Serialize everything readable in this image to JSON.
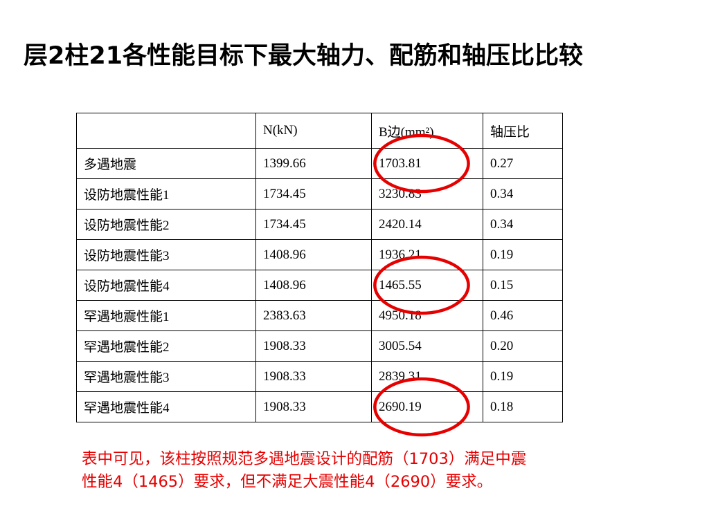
{
  "title": "层2柱21各性能目标下最大轴力、配筋和轴压比比较",
  "table": {
    "headers": [
      "",
      "N(kN)",
      "B边(mm²)",
      "轴压比"
    ],
    "rows": [
      [
        "多遇地震",
        "1399.66",
        "1703.81",
        "0.27"
      ],
      [
        "设防地震性能1",
        "1734.45",
        "3230.83",
        "0.34"
      ],
      [
        "设防地震性能2",
        "1734.45",
        "2420.14",
        "0.34"
      ],
      [
        "设防地震性能3",
        "1408.96",
        "1936.21",
        "0.19"
      ],
      [
        "设防地震性能4",
        "1408.96",
        "1465.55",
        "0.15"
      ],
      [
        "罕遇地震性能1",
        "2383.63",
        "4950.18",
        "0.46"
      ],
      [
        "罕遇地震性能2",
        "1908.33",
        "3005.54",
        "0.20"
      ],
      [
        "罕遇地震性能3",
        "1908.33",
        "2839.31",
        "0.19"
      ],
      [
        "罕遇地震性能4",
        "1908.33",
        "2690.19",
        "0.18"
      ]
    ],
    "highlighted_rows": [
      0,
      4,
      8
    ],
    "highlight_color": "#e60000"
  },
  "note": {
    "line1": "表中可见，该柱按照规范多遇地震设计的配筋（1703）满足中震",
    "line2": "性能4（1465）要求，但不满足大震性能4（2690）要求。",
    "color": "#e60000"
  }
}
